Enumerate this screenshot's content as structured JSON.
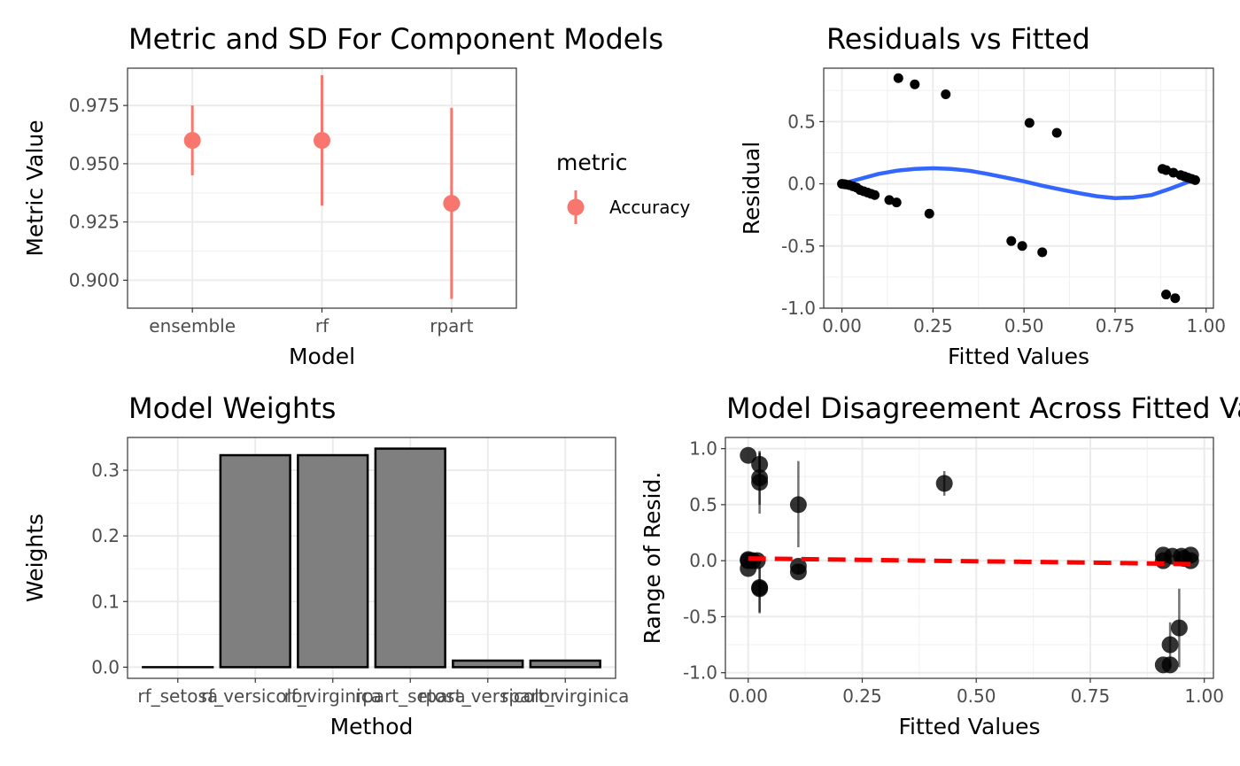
{
  "chart_data": [
    {
      "type": "scatter",
      "title": "Metric and SD For Component Models",
      "xlabel": "Model",
      "ylabel": "Metric Value",
      "categories": [
        "ensemble",
        "rf",
        "rpart"
      ],
      "yticks": [
        "0.900",
        "0.925",
        "0.950",
        "0.975"
      ],
      "ylim": [
        0.888,
        0.991
      ],
      "legend": {
        "title": "metric",
        "placement": "right",
        "entries": [
          "Accuracy"
        ]
      },
      "series": [
        {
          "name": "Accuracy",
          "color": "#F8766D",
          "values": [
            0.96,
            0.96,
            0.933
          ],
          "lower": [
            0.945,
            0.932,
            0.892
          ],
          "upper": [
            0.975,
            0.988,
            0.974
          ]
        }
      ],
      "grid": true
    },
    {
      "type": "scatter",
      "title": "Residuals vs Fitted",
      "xlabel": "Fitted Values",
      "ylabel": "Residual",
      "xticks": [
        "0.00",
        "0.25",
        "0.50",
        "0.75",
        "1.00"
      ],
      "yticks": [
        "-1.0",
        "-0.5",
        "0.0",
        "0.5"
      ],
      "xlim": [
        -0.05,
        1.02
      ],
      "ylim": [
        -1.0,
        0.93
      ],
      "points": [
        [
          0.0,
          0.0
        ],
        [
          0.005,
          -0.002
        ],
        [
          0.01,
          -0.005
        ],
        [
          0.02,
          -0.01
        ],
        [
          0.03,
          -0.02
        ],
        [
          0.04,
          -0.03
        ],
        [
          0.05,
          -0.05
        ],
        [
          0.06,
          -0.06
        ],
        [
          0.07,
          -0.07
        ],
        [
          0.08,
          -0.08
        ],
        [
          0.09,
          -0.09
        ],
        [
          0.13,
          -0.13
        ],
        [
          0.15,
          -0.15
        ],
        [
          0.155,
          0.85
        ],
        [
          0.2,
          0.8
        ],
        [
          0.24,
          -0.24
        ],
        [
          0.285,
          0.72
        ],
        [
          0.465,
          -0.46
        ],
        [
          0.495,
          -0.5
        ],
        [
          0.515,
          0.49
        ],
        [
          0.55,
          -0.55
        ],
        [
          0.59,
          0.41
        ],
        [
          0.88,
          0.12
        ],
        [
          0.89,
          0.11
        ],
        [
          0.89,
          -0.89
        ],
        [
          0.91,
          0.09
        ],
        [
          0.915,
          -0.92
        ],
        [
          0.93,
          0.07
        ],
        [
          0.94,
          0.06
        ],
        [
          0.95,
          0.05
        ],
        [
          0.96,
          0.04
        ],
        [
          0.97,
          0.03
        ]
      ],
      "smooth": {
        "color": "#3366FF",
        "x": [
          0.0,
          0.05,
          0.1,
          0.15,
          0.2,
          0.25,
          0.3,
          0.35,
          0.4,
          0.45,
          0.5,
          0.55,
          0.6,
          0.65,
          0.7,
          0.75,
          0.8,
          0.85,
          0.9,
          0.95,
          0.97
        ],
        "y": [
          0.0,
          0.04,
          0.08,
          0.105,
          0.12,
          0.125,
          0.12,
          0.105,
          0.08,
          0.05,
          0.02,
          -0.015,
          -0.045,
          -0.075,
          -0.1,
          -0.115,
          -0.11,
          -0.09,
          -0.04,
          0.015,
          0.03
        ]
      },
      "grid": true
    },
    {
      "type": "bar",
      "title": "Model Weights",
      "xlabel": "Method",
      "ylabel": "Weights",
      "categories": [
        "rf_setosa",
        "rf_versicolor",
        "rf_virginica",
        "rpart_setosa",
        "rpart_versicolor",
        "rpart_virginica"
      ],
      "values": [
        0.0,
        0.323,
        0.323,
        0.333,
        0.01,
        0.01
      ],
      "yticks": [
        "0.0",
        "0.1",
        "0.2",
        "0.3"
      ],
      "ylim": [
        -0.017,
        0.35
      ],
      "bar_color": "#7F7F7F",
      "grid": true
    },
    {
      "type": "scatter",
      "title": "Model Disagreement Across Fitted Values",
      "xlabel": "Fitted Values",
      "ylabel": "Range of Resid.",
      "xticks": [
        "0.00",
        "0.25",
        "0.50",
        "0.75",
        "1.00"
      ],
      "yticks": [
        "-1.0",
        "-0.5",
        "0.0",
        "0.5",
        "1.0"
      ],
      "xlim": [
        -0.05,
        1.02
      ],
      "ylim": [
        -1.05,
        1.1
      ],
      "points": [
        {
          "x": 0.0,
          "y": 0.94,
          "lo": 0.94,
          "hi": 0.94
        },
        {
          "x": 0.0,
          "y": 0.01,
          "lo": 0.0,
          "hi": 0.02
        },
        {
          "x": 0.0,
          "y": 0.0,
          "lo": 0.0,
          "hi": 0.0
        },
        {
          "x": 0.0,
          "y": -0.07,
          "lo": -0.07,
          "hi": -0.07
        },
        {
          "x": 0.01,
          "y": 0.0,
          "lo": 0.0,
          "hi": 0.0
        },
        {
          "x": 0.02,
          "y": 0.0,
          "lo": 0.0,
          "hi": 0.0
        },
        {
          "x": 0.025,
          "y": 0.86,
          "lo": 0.75,
          "hi": 0.98
        },
        {
          "x": 0.025,
          "y": 0.74,
          "lo": 0.5,
          "hi": 0.97
        },
        {
          "x": 0.025,
          "y": 0.7,
          "lo": 0.42,
          "hi": 0.96
        },
        {
          "x": 0.025,
          "y": -0.24,
          "lo": -0.46,
          "hi": -0.05
        },
        {
          "x": 0.025,
          "y": -0.25,
          "lo": -0.47,
          "hi": -0.06
        },
        {
          "x": 0.11,
          "y": 0.5,
          "lo": 0.12,
          "hi": 0.89
        },
        {
          "x": 0.11,
          "y": -0.05,
          "lo": -0.07,
          "hi": -0.03
        },
        {
          "x": 0.11,
          "y": -0.1,
          "lo": -0.12,
          "hi": -0.08
        },
        {
          "x": 0.43,
          "y": 0.69,
          "lo": 0.58,
          "hi": 0.8
        },
        {
          "x": 0.91,
          "y": 0.05,
          "lo": 0.04,
          "hi": 0.06
        },
        {
          "x": 0.91,
          "y": 0.0,
          "lo": 0.0,
          "hi": 0.0
        },
        {
          "x": 0.91,
          "y": -0.93,
          "lo": -0.93,
          "hi": -0.93
        },
        {
          "x": 0.925,
          "y": -0.75,
          "lo": -0.95,
          "hi": -0.55
        },
        {
          "x": 0.925,
          "y": -0.93,
          "lo": -0.93,
          "hi": -0.93
        },
        {
          "x": 0.93,
          "y": 0.04,
          "lo": 0.03,
          "hi": 0.05
        },
        {
          "x": 0.945,
          "y": -0.6,
          "lo": -0.95,
          "hi": -0.25
        },
        {
          "x": 0.95,
          "y": 0.04,
          "lo": 0.03,
          "hi": 0.05
        },
        {
          "x": 0.955,
          "y": 0.02,
          "lo": 0.02,
          "hi": 0.02
        },
        {
          "x": 0.97,
          "y": 0.05,
          "lo": 0.04,
          "hi": 0.06
        },
        {
          "x": 0.97,
          "y": 0.0,
          "lo": 0.0,
          "hi": 0.0
        }
      ],
      "trend": {
        "color": "#FF0000",
        "x": [
          0.0,
          0.2,
          0.4,
          0.6,
          0.8,
          0.97
        ],
        "y": [
          0.02,
          0.01,
          0.0,
          -0.01,
          -0.02,
          -0.03
        ]
      },
      "grid": true
    }
  ]
}
